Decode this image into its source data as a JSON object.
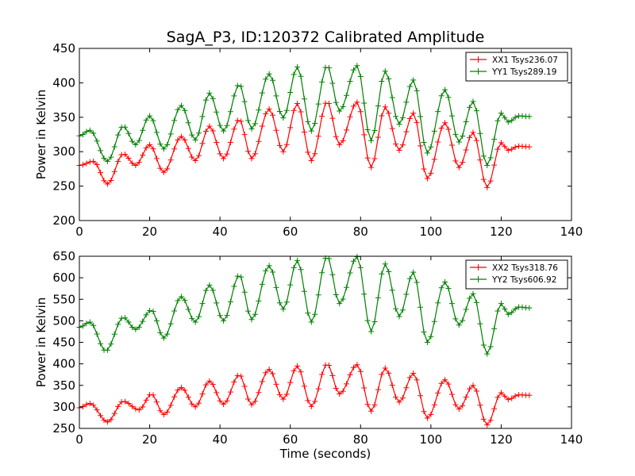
{
  "figure": {
    "title": "SagA_P3, ID:120372 Calibrated Amplitude"
  },
  "chart_data": [
    {
      "type": "line",
      "title": "SagA_P3, ID:120372 Calibrated Amplitude",
      "xlabel": "",
      "ylabel": "Power in Kelvin",
      "xlim": [
        0,
        140
      ],
      "ylim": [
        200,
        450
      ],
      "xticks": [
        0,
        20,
        40,
        60,
        80,
        100,
        120,
        140
      ],
      "yticks": [
        200,
        250,
        300,
        350,
        400,
        450
      ],
      "legend_position": "upper right",
      "grid": false,
      "marker": "+",
      "sample_spacing_s": 1,
      "series": [
        {
          "name": "XX1 Tsys236.07",
          "color": "#ff0000",
          "x": [
            0,
            4,
            8,
            12.5,
            16,
            20,
            24,
            29,
            33,
            37,
            41,
            45.5,
            49,
            54,
            58,
            62,
            66,
            70.5,
            74,
            79,
            83,
            87,
            91,
            95,
            99,
            104,
            108,
            112,
            116,
            120,
            122,
            125,
            128
          ],
          "y": [
            280,
            286,
            253,
            297,
            280,
            310,
            270,
            322,
            287,
            337,
            290,
            347,
            290,
            362,
            300,
            370,
            287,
            373,
            310,
            372,
            277,
            365,
            302,
            356,
            261,
            342,
            277,
            328,
            248,
            313,
            302,
            308,
            307
          ]
        },
        {
          "name": "YY1 Tsys289.19",
          "color": "#008000",
          "x": [
            0,
            3,
            8,
            12.5,
            16,
            20,
            24,
            29,
            33,
            37,
            41,
            45.5,
            49,
            54,
            58,
            62,
            66,
            70.5,
            74,
            79,
            83,
            87,
            91,
            95,
            99,
            104,
            108,
            112,
            116,
            120,
            122,
            125,
            128
          ],
          "y": [
            323,
            331,
            286,
            337,
            310,
            352,
            304,
            367,
            317,
            385,
            330,
            398,
            333,
            413,
            349,
            423,
            330,
            425,
            359,
            425,
            316,
            417,
            340,
            404,
            298,
            390,
            314,
            373,
            280,
            356,
            343,
            352,
            351
          ]
        }
      ]
    },
    {
      "type": "line",
      "title": "",
      "xlabel": "Time (seconds)",
      "ylabel": "Power in Kelvin",
      "xlim": [
        0,
        140
      ],
      "ylim": [
        250,
        650
      ],
      "xticks": [
        0,
        20,
        40,
        60,
        80,
        100,
        120,
        140
      ],
      "yticks": [
        250,
        300,
        350,
        400,
        450,
        500,
        550,
        600,
        650
      ],
      "legend_position": "upper right",
      "grid": false,
      "marker": "+",
      "sample_spacing_s": 1,
      "series": [
        {
          "name": "XX2 Tsys318.76",
          "color": "#ff0000",
          "x": [
            0,
            3,
            8,
            12.5,
            17,
            20.5,
            24,
            29,
            33,
            37,
            41,
            45.5,
            49,
            54,
            58,
            62,
            66,
            70.5,
            74,
            79,
            83,
            87,
            91,
            95,
            99,
            104,
            108,
            112,
            116,
            120,
            122,
            125,
            128
          ],
          "y": [
            298,
            308,
            265,
            313,
            293,
            330,
            282,
            345,
            300,
            360,
            306,
            375,
            305,
            387,
            318,
            395,
            301,
            400,
            330,
            398,
            290,
            390,
            311,
            378,
            274,
            363,
            295,
            350,
            258,
            333,
            317,
            328,
            327
          ]
        },
        {
          "name": "YY2 Tsys606.92",
          "color": "#008000",
          "x": [
            0,
            3,
            7.5,
            12.5,
            16,
            20.5,
            24,
            29,
            33,
            37,
            41,
            45.5,
            49,
            54,
            58,
            62,
            66,
            70.5,
            74,
            79,
            83,
            87,
            91,
            95,
            99,
            104,
            108,
            112,
            116,
            120,
            122,
            125,
            128
          ],
          "y": [
            485,
            497,
            430,
            508,
            480,
            525,
            460,
            556,
            497,
            583,
            500,
            607,
            503,
            628,
            527,
            640,
            497,
            650,
            540,
            649,
            475,
            632,
            510,
            613,
            450,
            590,
            490,
            563,
            423,
            540,
            515,
            532,
            530
          ]
        }
      ]
    }
  ]
}
